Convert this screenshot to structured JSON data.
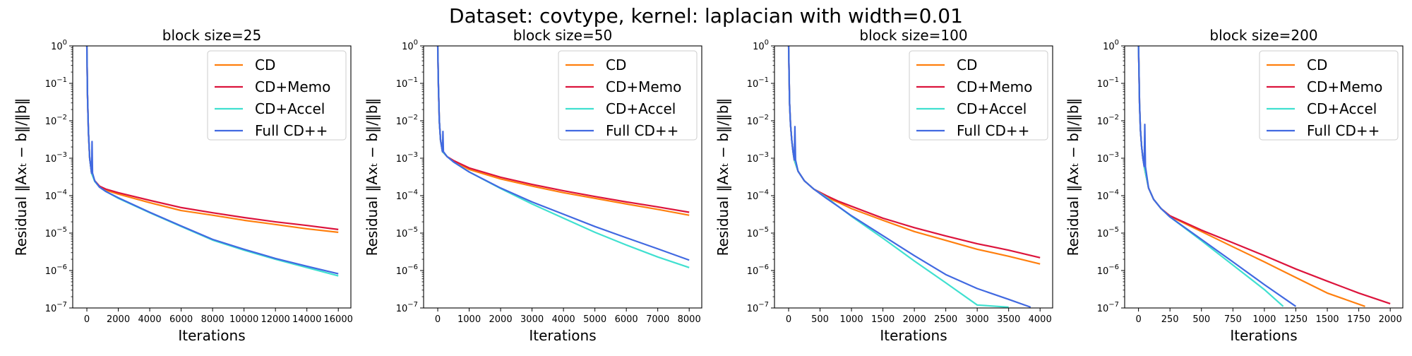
{
  "figure": {
    "title": "Dataset: covtype, kernel: laplacian with width=0.01"
  },
  "chart_data": [
    {
      "type": "line",
      "title": "block size=25",
      "xlabel": "Iterations",
      "ylabel": "Residual ‖Axₜ − b‖/‖b‖",
      "yscale": "log",
      "xlim": [
        -900,
        16800
      ],
      "ylim": [
        1e-07,
        1
      ],
      "xticks": [
        0,
        2000,
        4000,
        6000,
        8000,
        10000,
        12000,
        14000,
        16000
      ],
      "yticks": [
        1e-07,
        1e-06,
        1e-05,
        0.0001,
        0.001,
        0.01,
        0.1,
        1
      ],
      "legend": "top-right",
      "series": [
        {
          "name": "CD",
          "color": "#ff7f0e",
          "x": [
            0,
            40,
            100,
            180,
            300,
            500,
            800,
            1200,
            2000,
            4000,
            6000,
            8000,
            10000,
            12000,
            14000,
            16000
          ],
          "y": [
            1,
            0.05,
            0.005,
            0.001,
            0.0004,
            0.00025,
            0.00018,
            0.00014,
            0.00011,
            6.5e-05,
            4e-05,
            3e-05,
            2.2e-05,
            1.7e-05,
            1.3e-05,
            1.05e-05
          ]
        },
        {
          "name": "CD+Memo",
          "color": "#dc143c",
          "x": [
            0,
            40,
            100,
            180,
            300,
            500,
            800,
            1200,
            2000,
            4000,
            6000,
            8000,
            10000,
            12000,
            14000,
            16000
          ],
          "y": [
            1,
            0.05,
            0.005,
            0.001,
            0.0004,
            0.00025,
            0.00018,
            0.00015,
            0.00012,
            7.5e-05,
            4.8e-05,
            3.5e-05,
            2.6e-05,
            2e-05,
            1.6e-05,
            1.25e-05
          ]
        },
        {
          "name": "CD+Accel",
          "color": "#40e0d0",
          "x": [
            0,
            40,
            100,
            180,
            300,
            500,
            800,
            1200,
            2000,
            4000,
            6000,
            8000,
            10000,
            12000,
            14000,
            16000
          ],
          "y": [
            1,
            0.05,
            0.005,
            0.001,
            0.0004,
            0.00024,
            0.00017,
            0.00013,
            8.5e-05,
            3.5e-05,
            1.5e-05,
            6.5e-06,
            3.5e-06,
            2e-06,
            1.2e-06,
            7.2e-07
          ]
        },
        {
          "name": "Full CD++",
          "color": "#4169e1",
          "x": [
            0,
            40,
            100,
            180,
            300,
            330,
            360,
            500,
            800,
            1200,
            2000,
            4000,
            6000,
            8000,
            10000,
            12000,
            14000,
            16000
          ],
          "y": [
            1,
            0.05,
            0.005,
            0.001,
            0.0004,
            0.0028,
            0.0004,
            0.00025,
            0.00017,
            0.00013,
            8.8e-05,
            3.6e-05,
            1.55e-05,
            6.8e-06,
            3.7e-06,
            2.1e-06,
            1.3e-06,
            8.2e-07
          ]
        }
      ]
    },
    {
      "type": "line",
      "title": "block size=50",
      "xlabel": "Iterations",
      "ylabel": "Residual ‖Axₜ − b‖/‖b‖",
      "yscale": "log",
      "xlim": [
        -450,
        8400
      ],
      "ylim": [
        1e-07,
        1
      ],
      "xticks": [
        0,
        1000,
        2000,
        3000,
        4000,
        5000,
        6000,
        7000,
        8000
      ],
      "yticks": [
        1e-07,
        1e-06,
        1e-05,
        0.0001,
        0.001,
        0.01,
        0.1,
        1
      ],
      "legend": "top-right",
      "series": [
        {
          "name": "CD",
          "color": "#ff7f0e",
          "x": [
            0,
            20,
            50,
            90,
            150,
            300,
            500,
            1000,
            2000,
            3000,
            4000,
            5000,
            6000,
            7000,
            8000
          ],
          "y": [
            1,
            0.1,
            0.01,
            0.003,
            0.0015,
            0.0011,
            0.00085,
            0.0005,
            0.00028,
            0.00018,
            0.00012,
            8.5e-05,
            6e-05,
            4.3e-05,
            3e-05
          ]
        },
        {
          "name": "CD+Memo",
          "color": "#dc143c",
          "x": [
            0,
            20,
            50,
            90,
            150,
            300,
            500,
            1000,
            2000,
            3000,
            4000,
            5000,
            6000,
            7000,
            8000
          ],
          "y": [
            1,
            0.1,
            0.01,
            0.003,
            0.0015,
            0.0011,
            0.00087,
            0.00055,
            0.00031,
            0.0002,
            0.000135,
            9.5e-05,
            6.8e-05,
            5e-05,
            3.6e-05
          ]
        },
        {
          "name": "CD+Accel",
          "color": "#40e0d0",
          "x": [
            0,
            20,
            50,
            90,
            150,
            300,
            500,
            1000,
            2000,
            3000,
            4000,
            5000,
            6000,
            7000,
            8000
          ],
          "y": [
            1,
            0.1,
            0.01,
            0.003,
            0.0015,
            0.0011,
            0.0008,
            0.00043,
            0.000155,
            6e-05,
            2.5e-05,
            1.05e-05,
            4.8e-06,
            2.3e-06,
            1.2e-06
          ]
        },
        {
          "name": "Full CD++",
          "color": "#4169e1",
          "x": [
            0,
            20,
            50,
            90,
            150,
            165,
            180,
            300,
            500,
            1000,
            2000,
            3000,
            4000,
            5000,
            6000,
            7000,
            8000
          ],
          "y": [
            1,
            0.1,
            0.01,
            0.003,
            0.0015,
            0.0052,
            0.0015,
            0.0011,
            0.0008,
            0.00043,
            0.00016,
            6.8e-05,
            3.2e-05,
            1.5e-05,
            7.5e-06,
            3.8e-06,
            1.9e-06
          ]
        }
      ]
    },
    {
      "type": "line",
      "title": "block size=100",
      "xlabel": "Iterations",
      "ylabel": "Residual ‖Axₜ − b‖/‖b‖",
      "yscale": "log",
      "xlim": [
        -225,
        4200
      ],
      "ylim": [
        1e-07,
        1
      ],
      "xticks": [
        0,
        500,
        1000,
        1500,
        2000,
        2500,
        3000,
        3500,
        4000
      ],
      "yticks": [
        1e-07,
        1e-06,
        1e-05,
        0.0001,
        0.001,
        0.01,
        0.1,
        1
      ],
      "legend": "top-right",
      "series": [
        {
          "name": "CD",
          "color": "#ff7f0e",
          "x": [
            0,
            5,
            15,
            30,
            50,
            70,
            90,
            150,
            250,
            400,
            600,
            800,
            1000,
            1500,
            2000,
            2500,
            3000,
            3500,
            4000
          ],
          "y": [
            1,
            0.3,
            0.03,
            0.008,
            0.003,
            0.0015,
            0.0009,
            0.00045,
            0.00025,
            0.00015,
            9e-05,
            6.5e-05,
            4.5e-05,
            2.2e-05,
            1.1e-05,
            6.4e-06,
            3.7e-06,
            2.4e-06,
            1.5e-06
          ]
        },
        {
          "name": "CD+Memo",
          "color": "#dc143c",
          "x": [
            0,
            5,
            15,
            30,
            50,
            70,
            90,
            150,
            250,
            400,
            600,
            800,
            1000,
            1500,
            2000,
            2500,
            3000,
            3500,
            4000
          ],
          "y": [
            1,
            0.3,
            0.03,
            0.008,
            0.003,
            0.0015,
            0.0009,
            0.00045,
            0.00025,
            0.00015,
            0.0001,
            7e-05,
            5.2e-05,
            2.5e-05,
            1.4e-05,
            8.4e-06,
            5.2e-06,
            3.5e-06,
            2.2e-06
          ]
        },
        {
          "name": "CD+Accel",
          "color": "#40e0d0",
          "x": [
            0,
            5,
            15,
            30,
            50,
            70,
            90,
            150,
            250,
            400,
            600,
            800,
            1000,
            1500,
            2000,
            2500,
            3000,
            3500
          ],
          "y": [
            1,
            0.3,
            0.03,
            0.008,
            0.003,
            0.0015,
            0.0009,
            0.00045,
            0.00025,
            0.00015,
            9e-05,
            5e-05,
            2.8e-05,
            7.3e-06,
            1.8e-06,
            4.7e-07,
            1.2e-07,
            1.05e-07
          ]
        },
        {
          "name": "Full CD++",
          "color": "#4169e1",
          "x": [
            0,
            5,
            15,
            30,
            50,
            70,
            90,
            100,
            110,
            150,
            250,
            400,
            600,
            800,
            1000,
            1500,
            2000,
            2500,
            3000,
            3500,
            3850
          ],
          "y": [
            1,
            0.3,
            0.03,
            0.008,
            0.003,
            0.0015,
            0.0009,
            0.007,
            0.0009,
            0.00045,
            0.00025,
            0.00015,
            8.5e-05,
            5e-05,
            2.9e-05,
            8.5e-06,
            2.5e-06,
            7.8e-07,
            3.3e-07,
            1.7e-07,
            1.05e-07
          ]
        }
      ]
    },
    {
      "type": "line",
      "title": "block size=200",
      "xlabel": "Iterations",
      "ylabel": "Residual ‖Axₜ − b‖/‖b‖",
      "yscale": "log",
      "xlim": [
        -110,
        2100
      ],
      "ylim": [
        1e-07,
        1
      ],
      "xticks": [
        0,
        250,
        500,
        750,
        1000,
        1250,
        1500,
        1750,
        2000
      ],
      "yticks": [
        1e-07,
        1e-06,
        1e-05,
        0.0001,
        0.001,
        0.01,
        0.1,
        1
      ],
      "legend": "top-right",
      "series": [
        {
          "name": "CD",
          "color": "#ff7f0e",
          "x": [
            0,
            3,
            8,
            15,
            25,
            35,
            50,
            80,
            120,
            180,
            250,
            500,
            750,
            1000,
            1250,
            1500,
            1800
          ],
          "y": [
            1,
            0.3,
            0.03,
            0.006,
            0.002,
            0.001,
            0.0005,
            0.00016,
            8e-05,
            4.5e-05,
            2.8e-05,
            1.1e-05,
            4.3e-06,
            1.7e-06,
            6.5e-07,
            2.5e-07,
            1.1e-07
          ]
        },
        {
          "name": "CD+Memo",
          "color": "#dc143c",
          "x": [
            0,
            3,
            8,
            15,
            25,
            35,
            50,
            80,
            120,
            180,
            250,
            500,
            750,
            1000,
            1250,
            1500,
            1750,
            2000
          ],
          "y": [
            1,
            0.3,
            0.03,
            0.006,
            0.002,
            0.001,
            0.0005,
            0.00016,
            8e-05,
            4.5e-05,
            2.9e-05,
            1.2e-05,
            5.5e-06,
            2.5e-06,
            1.1e-06,
            5.2e-07,
            2.5e-07,
            1.3e-07
          ]
        },
        {
          "name": "CD+Accel",
          "color": "#40e0d0",
          "x": [
            0,
            3,
            8,
            15,
            25,
            35,
            50,
            80,
            120,
            180,
            250,
            500,
            750,
            1000,
            1150
          ],
          "y": [
            1,
            0.3,
            0.03,
            0.006,
            0.002,
            0.001,
            0.0005,
            0.00016,
            8e-05,
            4.5e-05,
            2.7e-05,
            6.3e-06,
            1.4e-06,
            3.1e-07,
            1.1e-07
          ]
        },
        {
          "name": "Full CD++",
          "color": "#4169e1",
          "x": [
            0,
            3,
            8,
            15,
            25,
            35,
            45,
            50,
            55,
            80,
            120,
            180,
            250,
            500,
            750,
            1000,
            1250
          ],
          "y": [
            1,
            0.3,
            0.03,
            0.006,
            0.002,
            0.001,
            0.0006,
            0.008,
            0.0006,
            0.00016,
            8e-05,
            4.5e-05,
            2.7e-05,
            6.8e-06,
            1.7e-06,
            4.2e-07,
            1.1e-07
          ]
        }
      ]
    }
  ]
}
